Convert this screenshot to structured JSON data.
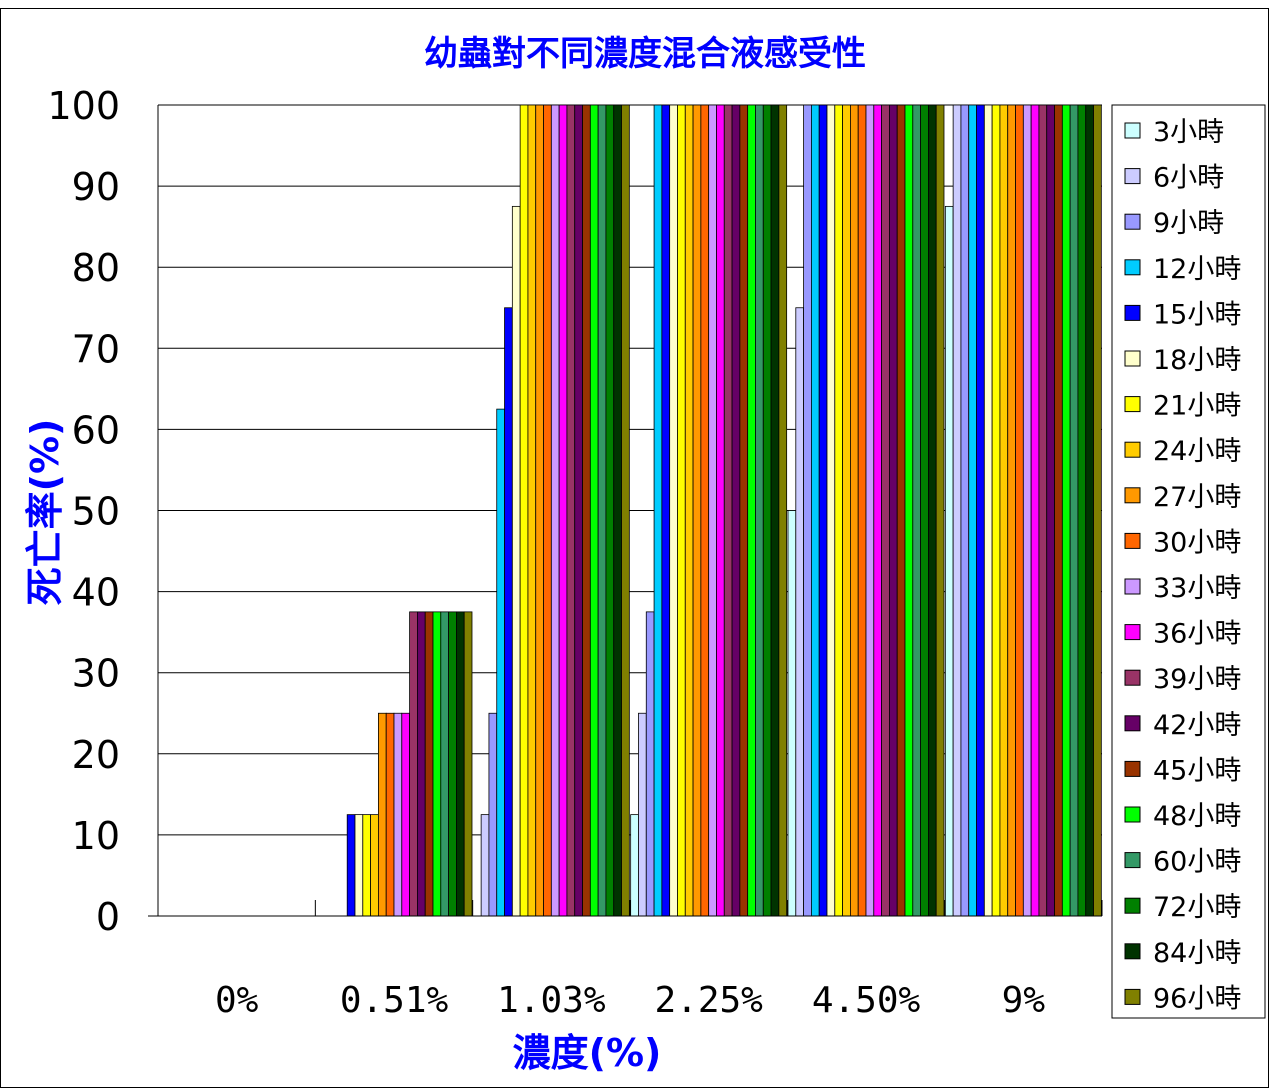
{
  "chart_data": {
    "type": "bar",
    "title": "幼蟲對不同濃度混合液感受性",
    "xlabel": "濃度(%)",
    "ylabel": "死亡率(%)",
    "ylim": [
      0,
      100
    ],
    "yticks": [
      0,
      10,
      20,
      30,
      40,
      50,
      60,
      70,
      80,
      90,
      100
    ],
    "grid": "horizontal",
    "legend_position": "right",
    "categories": [
      "0%",
      "0.51%",
      "1.03%",
      "2.25%",
      "4.50%",
      "9%"
    ],
    "series": [
      {
        "name": "3小時",
        "color": "#ccffff",
        "values": [
          0,
          0,
          0,
          12.5,
          50,
          87.5
        ]
      },
      {
        "name": "6小時",
        "color": "#ccccff",
        "values": [
          0,
          0,
          12.5,
          25,
          75,
          100
        ]
      },
      {
        "name": "9小時",
        "color": "#9999ff",
        "values": [
          0,
          0,
          25,
          37.5,
          100,
          100
        ]
      },
      {
        "name": "12小時",
        "color": "#00ccff",
        "values": [
          0,
          0,
          62.5,
          100,
          100,
          100
        ]
      },
      {
        "name": "15小時",
        "color": "#0000ff",
        "values": [
          0,
          12.5,
          75,
          100,
          100,
          100
        ]
      },
      {
        "name": "18小時",
        "color": "#ffffcc",
        "values": [
          0,
          12.5,
          87.5,
          100,
          100,
          100
        ]
      },
      {
        "name": "21小時",
        "color": "#ffff00",
        "values": [
          0,
          12.5,
          100,
          100,
          100,
          100
        ]
      },
      {
        "name": "24小時",
        "color": "#ffcc00",
        "values": [
          0,
          12.5,
          100,
          100,
          100,
          100
        ]
      },
      {
        "name": "27小時",
        "color": "#ff9900",
        "values": [
          0,
          25,
          100,
          100,
          100,
          100
        ]
      },
      {
        "name": "30小時",
        "color": "#ff6600",
        "values": [
          0,
          25,
          100,
          100,
          100,
          100
        ]
      },
      {
        "name": "33小時",
        "color": "#cc99ff",
        "values": [
          0,
          25,
          100,
          100,
          100,
          100
        ]
      },
      {
        "name": "36小時",
        "color": "#ff00ff",
        "values": [
          0,
          25,
          100,
          100,
          100,
          100
        ]
      },
      {
        "name": "39小時",
        "color": "#993366",
        "values": [
          0,
          37.5,
          100,
          100,
          100,
          100
        ]
      },
      {
        "name": "42小時",
        "color": "#660066",
        "values": [
          0,
          37.5,
          100,
          100,
          100,
          100
        ]
      },
      {
        "name": "45小時",
        "color": "#993300",
        "values": [
          0,
          37.5,
          100,
          100,
          100,
          100
        ]
      },
      {
        "name": "48小時",
        "color": "#00ff00",
        "values": [
          0,
          37.5,
          100,
          100,
          100,
          100
        ]
      },
      {
        "name": "60小時",
        "color": "#339966",
        "values": [
          0,
          37.5,
          100,
          100,
          100,
          100
        ]
      },
      {
        "name": "72小時",
        "color": "#008000",
        "values": [
          0,
          37.5,
          100,
          100,
          100,
          100
        ]
      },
      {
        "name": "84小時",
        "color": "#003300",
        "values": [
          0,
          37.5,
          100,
          100,
          100,
          100
        ]
      },
      {
        "name": "96小時",
        "color": "#808000",
        "values": [
          0,
          37.5,
          100,
          100,
          100,
          100
        ]
      }
    ]
  },
  "colors": {
    "title": "#0000ff",
    "axis_labels": "#0000ff"
  }
}
